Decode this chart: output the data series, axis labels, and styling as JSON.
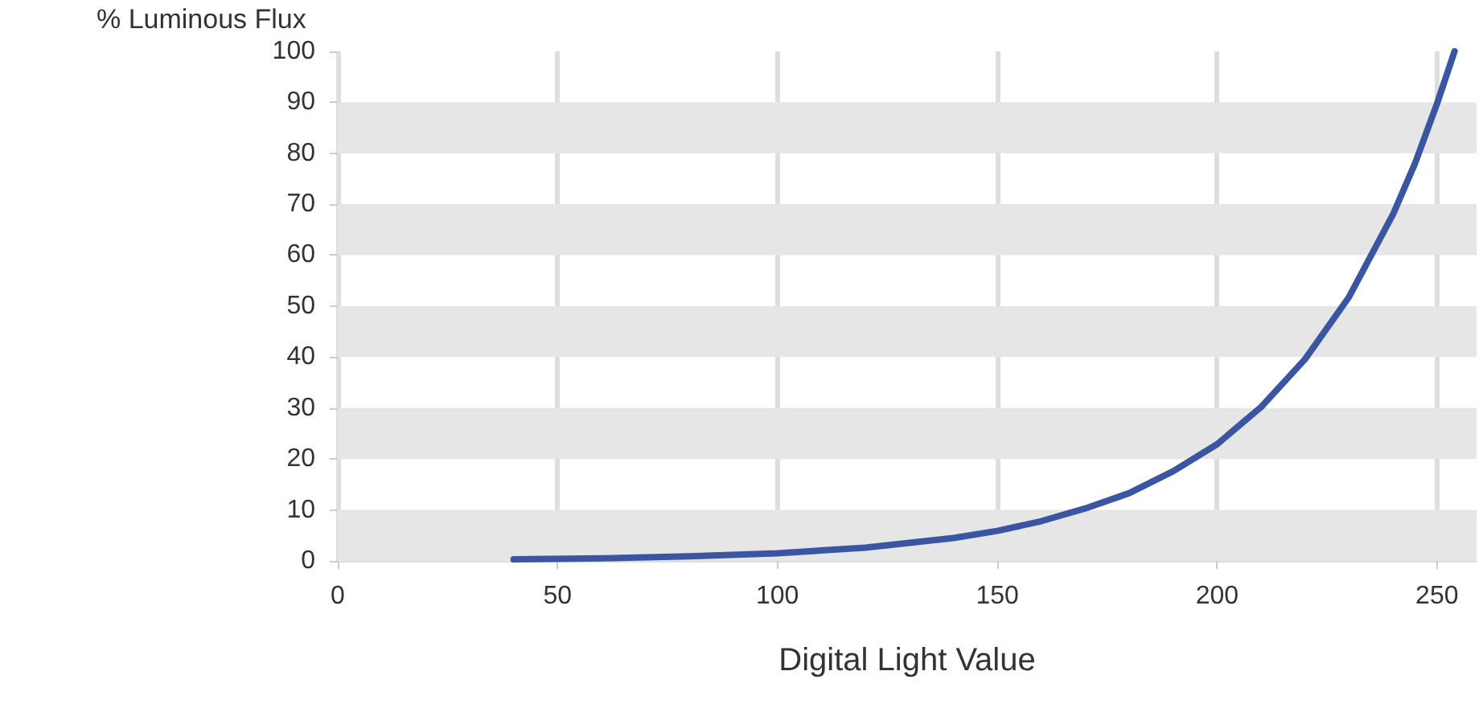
{
  "chart_data": {
    "type": "line",
    "xlabel": "Digital Light Value",
    "ylabel": "% Luminous Flux",
    "series": [
      {
        "color": "#3a56a3",
        "x": [
          40,
          60,
          80,
          100,
          120,
          140,
          150,
          160,
          170,
          180,
          190,
          200,
          210,
          220,
          230,
          240,
          245,
          250,
          254
        ],
        "values": [
          0.3,
          0.5,
          0.9,
          1.5,
          2.6,
          4.5,
          5.9,
          7.8,
          10.3,
          13.3,
          17.6,
          22.9,
          30.2,
          39.6,
          51.8,
          68,
          78,
          89.7,
          100
        ]
      }
    ],
    "xlim": [
      0,
      259
    ],
    "xticks": [
      0,
      50,
      100,
      150,
      200,
      250
    ],
    "ylim": [
      0,
      100
    ],
    "yticks": [
      0,
      10,
      20,
      30,
      40,
      50,
      60,
      70,
      80,
      90,
      100
    ],
    "grid": "x",
    "marker": "none",
    "line_style": "solid",
    "bands": [
      {
        "axis": "y",
        "from": 0,
        "to": 10,
        "color": "#e6e6e6"
      },
      {
        "axis": "y",
        "from": 20,
        "to": 30,
        "color": "#e6e6e6"
      },
      {
        "axis": "y",
        "from": 40,
        "to": 50,
        "color": "#e6e6e6"
      },
      {
        "axis": "y",
        "from": 60,
        "to": 70,
        "color": "#e6e6e6"
      },
      {
        "axis": "y",
        "from": 80,
        "to": 90,
        "color": "#e6e6e6"
      }
    ]
  }
}
